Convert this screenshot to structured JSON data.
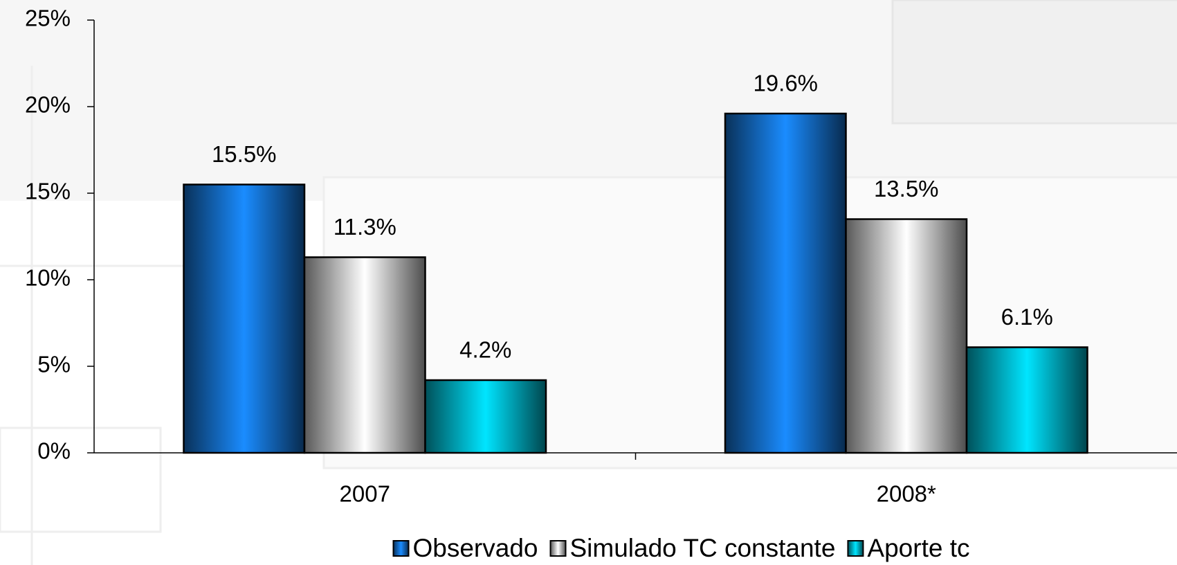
{
  "chart_data": {
    "type": "bar",
    "categories": [
      "2007",
      "2008*"
    ],
    "series": [
      {
        "name": "Observado",
        "color": "#1a8cff",
        "values": [
          15.5,
          19.6
        ],
        "value_labels": [
          "15.5%",
          "19.6%"
        ]
      },
      {
        "name": "Simulado TC constante",
        "color": "#ffffff",
        "values": [
          11.3,
          13.5
        ],
        "value_labels": [
          "11.3%",
          "13.5%"
        ]
      },
      {
        "name": "Aporte tc",
        "color": "#00e5ff",
        "values": [
          4.2,
          6.1
        ],
        "value_labels": [
          "4.2%",
          "6.1%"
        ]
      }
    ],
    "ylim": [
      0,
      25
    ],
    "yticks": [
      {
        "value": 0,
        "label": "0%"
      },
      {
        "value": 5,
        "label": "5%"
      },
      {
        "value": 10,
        "label": "10%"
      },
      {
        "value": 15,
        "label": "15%"
      },
      {
        "value": 20,
        "label": "20%"
      },
      {
        "value": 25,
        "label": "25%"
      }
    ],
    "legend": "bottom"
  }
}
